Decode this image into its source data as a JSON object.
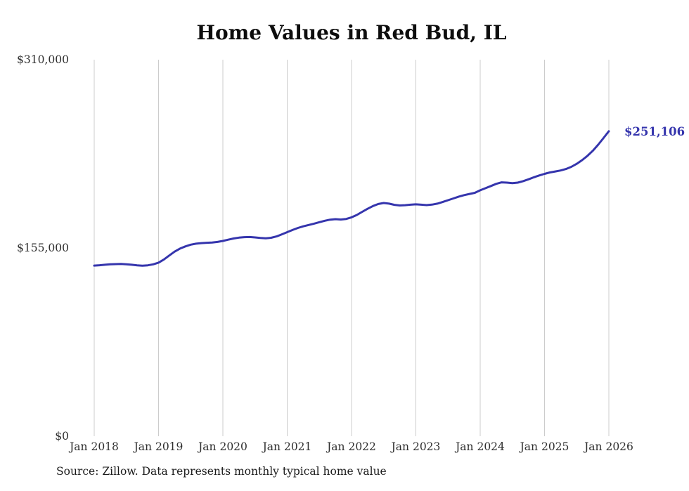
{
  "chart_data": {
    "type": "line",
    "title": "Home Values in Red Bud, IL",
    "x_frequency": "monthly",
    "months": [
      "2018-01",
      "2018-02",
      "2018-03",
      "2018-04",
      "2018-05",
      "2018-06",
      "2018-07",
      "2018-08",
      "2018-09",
      "2018-10",
      "2018-11",
      "2018-12",
      "2019-01",
      "2019-02",
      "2019-03",
      "2019-04",
      "2019-05",
      "2019-06",
      "2019-07",
      "2019-08",
      "2019-09",
      "2019-10",
      "2019-11",
      "2019-12",
      "2020-01",
      "2020-02",
      "2020-03",
      "2020-04",
      "2020-05",
      "2020-06",
      "2020-07",
      "2020-08",
      "2020-09",
      "2020-10",
      "2020-11",
      "2020-12",
      "2021-01",
      "2021-02",
      "2021-03",
      "2021-04",
      "2021-05",
      "2021-06",
      "2021-07",
      "2021-08",
      "2021-09",
      "2021-10",
      "2021-11",
      "2021-12",
      "2022-01",
      "2022-02",
      "2022-03",
      "2022-04",
      "2022-05",
      "2022-06",
      "2022-07",
      "2022-08",
      "2022-09",
      "2022-10",
      "2022-11",
      "2022-12",
      "2023-01",
      "2023-02",
      "2023-03",
      "2023-04",
      "2023-05",
      "2023-06",
      "2023-07",
      "2023-08",
      "2023-09",
      "2023-10",
      "2023-11",
      "2023-12",
      "2024-01",
      "2024-02",
      "2024-03",
      "2024-04",
      "2024-05",
      "2024-06",
      "2024-07",
      "2024-08",
      "2024-09",
      "2024-10",
      "2024-11",
      "2024-12",
      "2025-01",
      "2025-02",
      "2025-03",
      "2025-04",
      "2025-05",
      "2025-06",
      "2025-07",
      "2025-08",
      "2025-09",
      "2025-10",
      "2025-11",
      "2025-12",
      "2026-01"
    ],
    "values": [
      140500,
      140800,
      141200,
      141500,
      141700,
      141800,
      141600,
      141200,
      140700,
      140400,
      140700,
      141500,
      142900,
      145500,
      148800,
      152000,
      154500,
      156300,
      157700,
      158500,
      159000,
      159300,
      159500,
      160000,
      160800,
      161800,
      162800,
      163500,
      163900,
      164000,
      163700,
      163200,
      162900,
      163400,
      164500,
      166200,
      168000,
      169800,
      171500,
      172800,
      173900,
      175000,
      176200,
      177400,
      178300,
      178700,
      178400,
      178900,
      180200,
      182200,
      184800,
      187300,
      189500,
      191200,
      192000,
      191500,
      190500,
      190000,
      190200,
      190600,
      190900,
      190600,
      190300,
      190700,
      191500,
      192800,
      194300,
      195800,
      197300,
      198500,
      199500,
      200400,
      202500,
      204200,
      206000,
      207800,
      209000,
      208800,
      208300,
      208800,
      210000,
      211500,
      213200,
      214700,
      216000,
      217200,
      218000,
      218800,
      220000,
      221800,
      224300,
      227300,
      230800,
      235000,
      240000,
      245500,
      251106
    ],
    "x_tick_labels": [
      "Jan 2018",
      "Jan 2019",
      "Jan 2020",
      "Jan 2021",
      "Jan 2022",
      "Jan 2023",
      "Jan 2024",
      "Jan 2025",
      "Jan 2026"
    ],
    "y_ticks": [
      {
        "label": "$0",
        "value": 0
      },
      {
        "label": "$155,000",
        "value": 155000
      },
      {
        "label": "$310,000",
        "value": 310000
      }
    ],
    "ylim": [
      0,
      310000
    ],
    "grid": "vertical-only",
    "legend": "none",
    "line_color": "#3535ad",
    "end_label": "$251,106",
    "end_value": 251106
  },
  "source_note": "Source: Zillow. Data represents monthly typical home value"
}
